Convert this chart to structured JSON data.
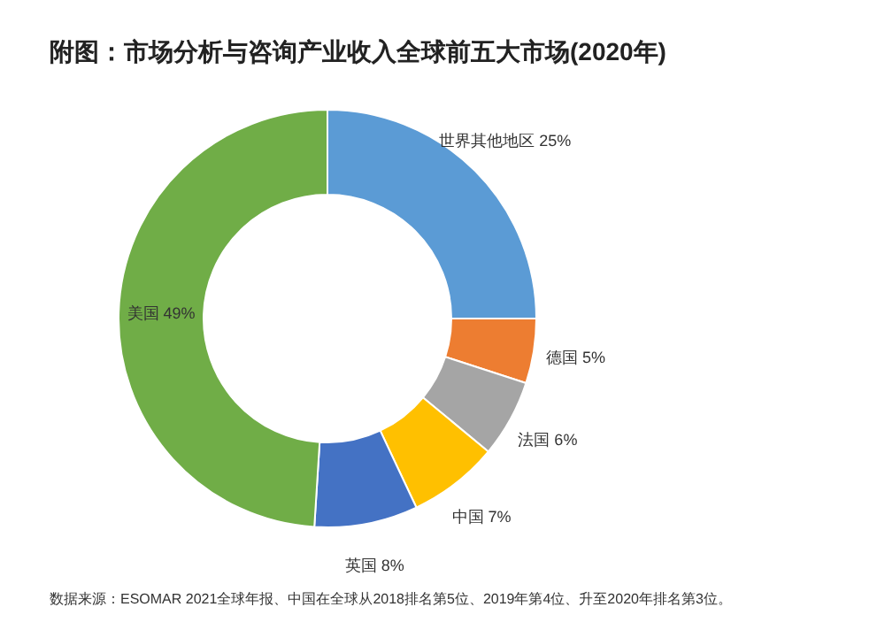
{
  "chart_data": {
    "type": "donut",
    "title": "附图：市场分析与咨询产业收入全球前五大市场(2020年)",
    "categories": [
      "世界其他地区",
      "德国",
      "法国",
      "中国",
      "英国",
      "美国"
    ],
    "values": [
      25,
      5,
      6,
      7,
      8,
      49
    ],
    "value_labels": [
      "25%",
      "5%",
      "6%",
      "7%",
      "8%",
      "49%"
    ],
    "colors": [
      "#5b9bd5",
      "#ed7d31",
      "#a5a5a5",
      "#ffc000",
      "#4472c4",
      "#70ad47"
    ],
    "annotations": [
      "数据来源：ESOMAR 2021全球年报、中国在全球从2018排名第5位、2019年第4位、升至2020年排名第3位。"
    ]
  }
}
